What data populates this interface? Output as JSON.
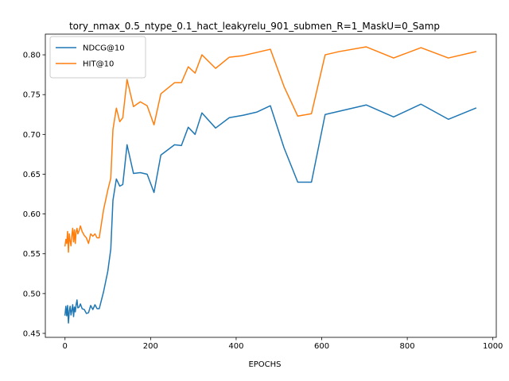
{
  "chart_data": {
    "type": "line",
    "title": "tory_nmax_0.5_ntype_0.1_hact_leakyrelu_901_submen_R=1_MaskU=0_Samp",
    "xlabel": "EPOCHS",
    "ylabel": "",
    "xlim": [
      -46,
      1008
    ],
    "ylim": [
      0.445,
      0.826
    ],
    "xticks": [
      0,
      200,
      400,
      600,
      800,
      1000
    ],
    "yticks": [
      0.45,
      0.5,
      0.55,
      0.6,
      0.65,
      0.7,
      0.75,
      0.8
    ],
    "ytick_labels": [
      "0.45",
      "0.50",
      "0.55",
      "0.60",
      "0.65",
      "0.70",
      "0.75",
      "0.80"
    ],
    "grid": false,
    "legend_position": "upper-left",
    "series": [
      {
        "name": "NDCG@10",
        "color": "#1f77b4",
        "x": [
          0,
          2,
          4,
          6,
          8,
          10,
          12,
          14,
          16,
          18,
          20,
          22,
          24,
          26,
          28,
          30,
          33,
          36,
          40,
          45,
          50,
          55,
          60,
          65,
          70,
          75,
          80,
          90,
          100,
          107,
          112,
          120,
          128,
          135,
          145,
          160,
          176,
          192,
          208,
          224,
          256,
          272,
          288,
          304,
          320,
          352,
          384,
          416,
          448,
          480,
          512,
          544,
          576,
          608,
          640,
          704,
          768,
          832,
          896,
          960
        ],
        "y": [
          0.473,
          0.484,
          0.472,
          0.485,
          0.463,
          0.478,
          0.484,
          0.473,
          0.479,
          0.486,
          0.471,
          0.483,
          0.477,
          0.486,
          0.492,
          0.482,
          0.483,
          0.487,
          0.481,
          0.48,
          0.475,
          0.476,
          0.485,
          0.48,
          0.486,
          0.481,
          0.481,
          0.502,
          0.528,
          0.556,
          0.617,
          0.644,
          0.635,
          0.637,
          0.687,
          0.651,
          0.652,
          0.65,
          0.627,
          0.674,
          0.687,
          0.686,
          0.709,
          0.7,
          0.727,
          0.708,
          0.721,
          0.724,
          0.728,
          0.736,
          0.683,
          0.64,
          0.64,
          0.725,
          0.729,
          0.737,
          0.722,
          0.738,
          0.719,
          0.733
        ]
      },
      {
        "name": "HIT@10",
        "color": "#ff7f0e",
        "x": [
          0,
          2,
          4,
          6,
          8,
          10,
          12,
          14,
          16,
          18,
          20,
          22,
          24,
          26,
          28,
          30,
          33,
          36,
          40,
          45,
          50,
          55,
          60,
          65,
          70,
          75,
          80,
          90,
          100,
          107,
          112,
          120,
          128,
          135,
          145,
          160,
          176,
          192,
          208,
          224,
          256,
          272,
          288,
          304,
          320,
          352,
          384,
          416,
          448,
          480,
          512,
          544,
          576,
          608,
          640,
          704,
          768,
          832,
          896,
          960
        ],
        "y": [
          0.56,
          0.568,
          0.563,
          0.578,
          0.552,
          0.575,
          0.566,
          0.56,
          0.573,
          0.582,
          0.565,
          0.58,
          0.563,
          0.578,
          0.582,
          0.575,
          0.579,
          0.585,
          0.578,
          0.573,
          0.57,
          0.563,
          0.575,
          0.572,
          0.575,
          0.57,
          0.57,
          0.605,
          0.63,
          0.645,
          0.706,
          0.733,
          0.716,
          0.721,
          0.769,
          0.735,
          0.741,
          0.736,
          0.712,
          0.751,
          0.765,
          0.765,
          0.785,
          0.777,
          0.8,
          0.783,
          0.797,
          0.799,
          0.803,
          0.807,
          0.76,
          0.723,
          0.726,
          0.8,
          0.804,
          0.81,
          0.796,
          0.809,
          0.796,
          0.804
        ]
      }
    ]
  }
}
